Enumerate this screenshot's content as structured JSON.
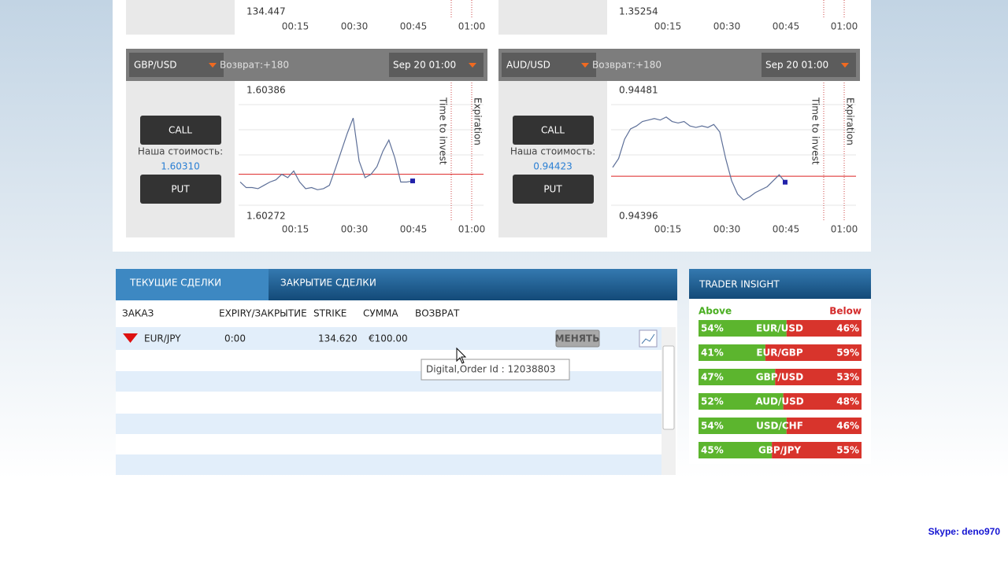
{
  "top_widgets": [
    {
      "low": 134.447,
      "times": [
        "00:15",
        "00:30",
        "00:45",
        "01:00"
      ]
    },
    {
      "low": 1.35254,
      "times": [
        "00:15",
        "00:30",
        "00:45",
        "01:00"
      ]
    }
  ],
  "widgets": [
    {
      "pair": "GBP/USD",
      "payout": "Возврат:+180",
      "expiry": "Sep 20 01:00",
      "call": "CALL",
      "price_caption": "Наша стоимость:",
      "price": "1.60310",
      "put": "PUT",
      "high": 1.60386,
      "low": 1.60272,
      "times": [
        "00:15",
        "00:30",
        "00:45",
        "01:00"
      ],
      "time_to_invest": "Time to invest",
      "expiration": "Expiration",
      "prices": [
        1.60303,
        1.60298,
        1.60298,
        1.60297,
        1.603,
        1.60303,
        1.60305,
        1.6031,
        1.60307,
        1.60313,
        1.60303,
        1.60297,
        1.60298,
        1.60296,
        1.60297,
        1.603,
        1.60315,
        1.60331,
        1.60347,
        1.60361,
        1.60322,
        1.60307,
        1.6031,
        1.60317,
        1.60331,
        1.60341,
        1.60325,
        1.60303,
        1.60303,
        1.60304
      ]
    },
    {
      "pair": "AUD/USD",
      "payout": "Возврат:+180",
      "expiry": "Sep 20 01:00",
      "call": "CALL",
      "price_caption": "Наша стоимость:",
      "price": "0.94423",
      "put": "PUT",
      "high": 0.94481,
      "low": 0.94396,
      "times": [
        "00:15",
        "00:30",
        "00:45",
        "01:00"
      ],
      "time_to_invest": "Time to invest",
      "expiration": "Expiration",
      "prices": [
        0.94429,
        0.94435,
        0.94448,
        0.94455,
        0.94457,
        0.9446,
        0.94461,
        0.94462,
        0.94461,
        0.94463,
        0.9446,
        0.94459,
        0.9446,
        0.94457,
        0.94456,
        0.94457,
        0.94456,
        0.94458,
        0.94453,
        0.94435,
        0.9442,
        0.94411,
        0.94407,
        0.94409,
        0.94412,
        0.94414,
        0.94416,
        0.9442,
        0.94424,
        0.94419
      ]
    }
  ],
  "trades": {
    "tabs": [
      "ТЕКУЩИЕ СДЕЛКИ",
      "ЗАКРЫТИЕ СДЕЛКИ"
    ],
    "columns": [
      "ЗАКАЗ",
      "EXPIRY/ЗАКРЫТИЕ",
      "STRIKE",
      "СУММА",
      "ВОЗВРАТ"
    ],
    "rows": [
      {
        "pair": "EUR/JPY",
        "expiry": "0:00",
        "strike": "134.620",
        "amount": "€100.00",
        "button": "МЕНЯТЬ"
      }
    ],
    "tooltip": "Digital,Order Id : 12038803"
  },
  "insight": {
    "title": "TRADER INSIGHT",
    "above": "Above",
    "below": "Below",
    "rows": [
      {
        "pair": "EUR/USD",
        "above": 54,
        "below": 46,
        "above_label": "54%",
        "below_label": "46%"
      },
      {
        "pair": "EUR/GBP",
        "above": 41,
        "below": 59,
        "above_label": "41%",
        "below_label": "59%"
      },
      {
        "pair": "GBP/USD",
        "above": 47,
        "below": 53,
        "above_label": "47%",
        "below_label": "53%"
      },
      {
        "pair": "AUD/USD",
        "above": 52,
        "below": 48,
        "above_label": "52%",
        "below_label": "48%"
      },
      {
        "pair": "USD/CHF",
        "above": 54,
        "below": 46,
        "above_label": "54%",
        "below_label": "46%"
      },
      {
        "pair": "GBP/JPY",
        "above": 45,
        "below": 55,
        "above_label": "45%",
        "below_label": "55%"
      }
    ]
  },
  "footer": "Skype: deno970"
}
